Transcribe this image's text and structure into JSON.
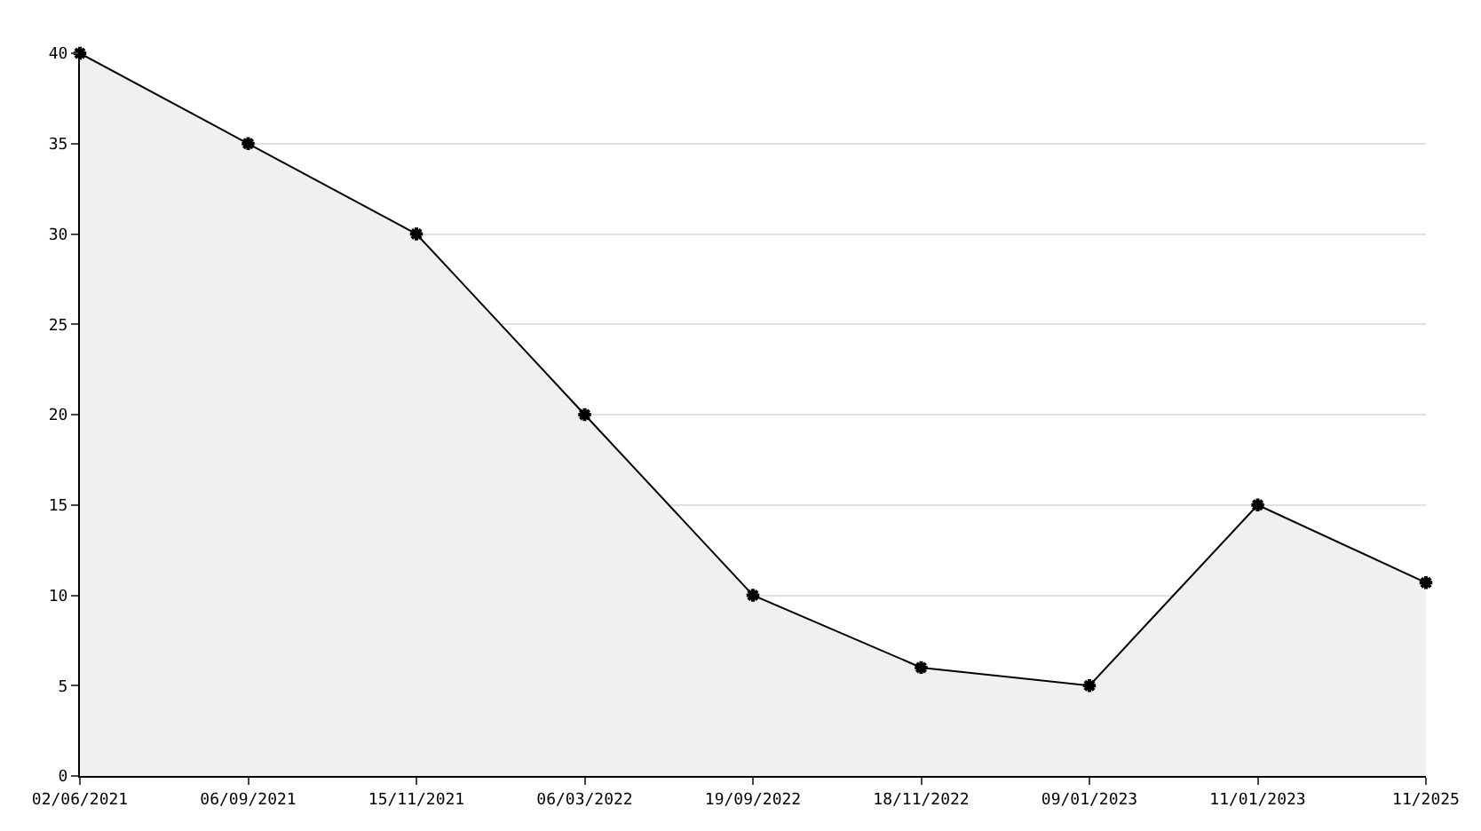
{
  "chart_data": {
    "type": "area",
    "categories": [
      "02/06/2021",
      "06/09/2021",
      "15/11/2021",
      "06/03/2022",
      "19/09/2022",
      "18/11/2022",
      "09/01/2023",
      "11/01/2023",
      "11/2025"
    ],
    "series": [
      {
        "color": "#000000",
        "values": [
          40,
          35,
          30,
          20,
          10,
          6,
          5,
          15,
          10.7
        ]
      }
    ],
    "ylim": [
      0,
      40
    ],
    "yticks": [
      0,
      5,
      10,
      15,
      20,
      25,
      30,
      35,
      40
    ],
    "grid": "y",
    "marker": "cross",
    "line_style": "solid",
    "legend": false
  }
}
